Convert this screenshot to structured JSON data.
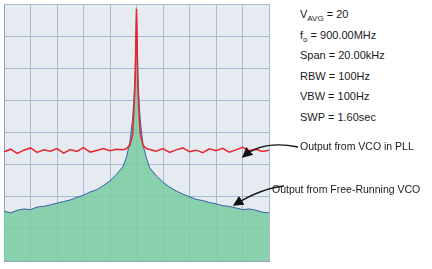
{
  "chart_data": {
    "type": "line",
    "annotations": [
      {
        "text": "V",
        "sub": "AVG",
        "after": " = 20"
      },
      {
        "text": "f",
        "sub": "o",
        "after": " = 900.00MHz"
      },
      {
        "text": "Span = 20.00kHz"
      },
      {
        "text": "RBW = 100Hz"
      },
      {
        "text": "VBW = 100Hz"
      },
      {
        "text": "SWP = 1.60sec"
      }
    ],
    "x": [
      -10,
      -9.5,
      -9,
      -8.5,
      -8,
      -7.5,
      -7,
      -6.5,
      -6,
      -5.5,
      -5,
      -4.5,
      -4,
      -3.5,
      -3,
      -2.5,
      -2,
      -1.5,
      -1,
      -0.75,
      -0.5,
      -0.3,
      -0.2,
      -0.1,
      0,
      0.1,
      0.2,
      0.3,
      0.5,
      0.75,
      1,
      1.5,
      2,
      2.5,
      3,
      3.5,
      4,
      4.5,
      5,
      5.5,
      6,
      6.5,
      7,
      7.5,
      8,
      8.5,
      9,
      9.5,
      10
    ],
    "series": [
      {
        "name": "Output from Free-Running VCO",
        "color": "#3a5ea8",
        "values": [
          1.55,
          1.5,
          1.58,
          1.62,
          1.6,
          1.68,
          1.7,
          1.75,
          1.8,
          1.85,
          1.9,
          1.98,
          2.05,
          2.15,
          2.22,
          2.35,
          2.5,
          2.7,
          2.95,
          3.25,
          3.7,
          4.4,
          5.0,
          5.9,
          7.8,
          5.8,
          4.9,
          4.3,
          3.6,
          3.2,
          2.9,
          2.65,
          2.45,
          2.3,
          2.18,
          2.08,
          2.0,
          1.92,
          1.88,
          1.82,
          1.78,
          1.72,
          1.7,
          1.65,
          1.6,
          1.62,
          1.58,
          1.52,
          1.5
        ]
      },
      {
        "name": "Output from VCO in PLL",
        "color": "#e8242c",
        "values": [
          3.4,
          3.48,
          3.35,
          3.45,
          3.52,
          3.38,
          3.46,
          3.42,
          3.5,
          3.36,
          3.47,
          3.41,
          3.53,
          3.39,
          3.44,
          3.5,
          3.43,
          3.48,
          3.46,
          3.5,
          3.6,
          3.9,
          4.6,
          5.6,
          7.85,
          5.5,
          4.5,
          3.9,
          3.6,
          3.5,
          3.47,
          3.42,
          3.5,
          3.38,
          3.46,
          3.52,
          3.4,
          3.45,
          3.37,
          3.49,
          3.43,
          3.51,
          3.39,
          3.46,
          3.54,
          3.44,
          3.48,
          3.41,
          3.45
        ]
      }
    ],
    "xlim": [
      -10,
      10
    ],
    "xticks": [
      -10,
      -8,
      -6,
      -4,
      -2,
      0,
      2,
      4,
      6,
      8,
      10
    ],
    "ylim": [
      0,
      8
    ],
    "yticks": [
      0,
      1,
      2,
      3,
      4,
      5,
      6,
      7,
      8
    ],
    "grid": true,
    "tick_labels": false
  }
}
